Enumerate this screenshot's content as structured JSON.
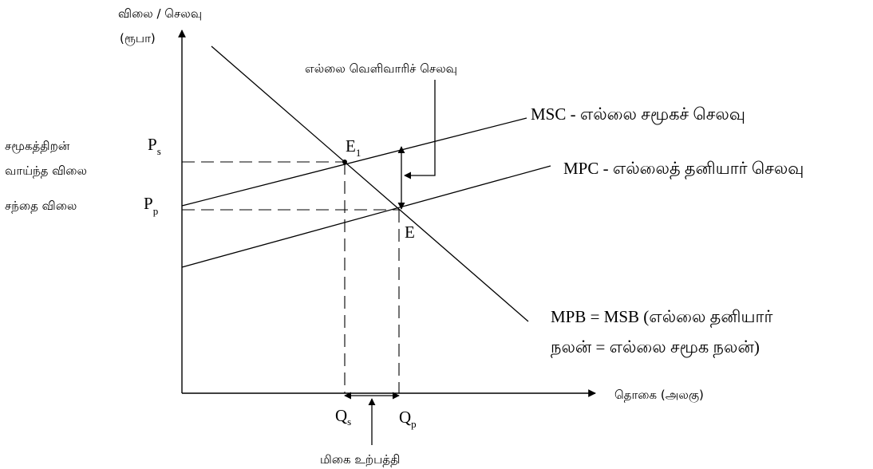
{
  "axes": {
    "y_label_line1": "விலை / செலவு",
    "y_label_line2": "(ரூபா)",
    "x_label": "தொகை (அலகு)"
  },
  "curves": {
    "msc": {
      "label": "MSC - எல்லை சமூகச் செலவு"
    },
    "mpc": {
      "label": "MPC - எல்லைத் தனியார் செலவு"
    },
    "mpb": {
      "label_line1": "MPB = MSB (எல்லை தனியார்",
      "label_line2": "நலன் = எல்லை சமூக நலன்)"
    }
  },
  "annotations": {
    "external_cost": "எல்லை வெளிவாரிச் செலவு",
    "social_price_line1": "சமூகத்திறன்",
    "social_price_line2": "வாய்ந்த விலை",
    "market_price": "சந்தை விலை",
    "overproduction": "மிகை உற்பத்தி"
  },
  "points": {
    "ps": {
      "main": "P",
      "sub": "s"
    },
    "pp": {
      "main": "P",
      "sub": "p"
    },
    "e1": {
      "main": "E",
      "sub": "1"
    },
    "e": {
      "main": "E"
    },
    "qs": {
      "main": "Q",
      "sub": "s"
    },
    "qp": {
      "main": "Q",
      "sub": "p"
    }
  }
}
